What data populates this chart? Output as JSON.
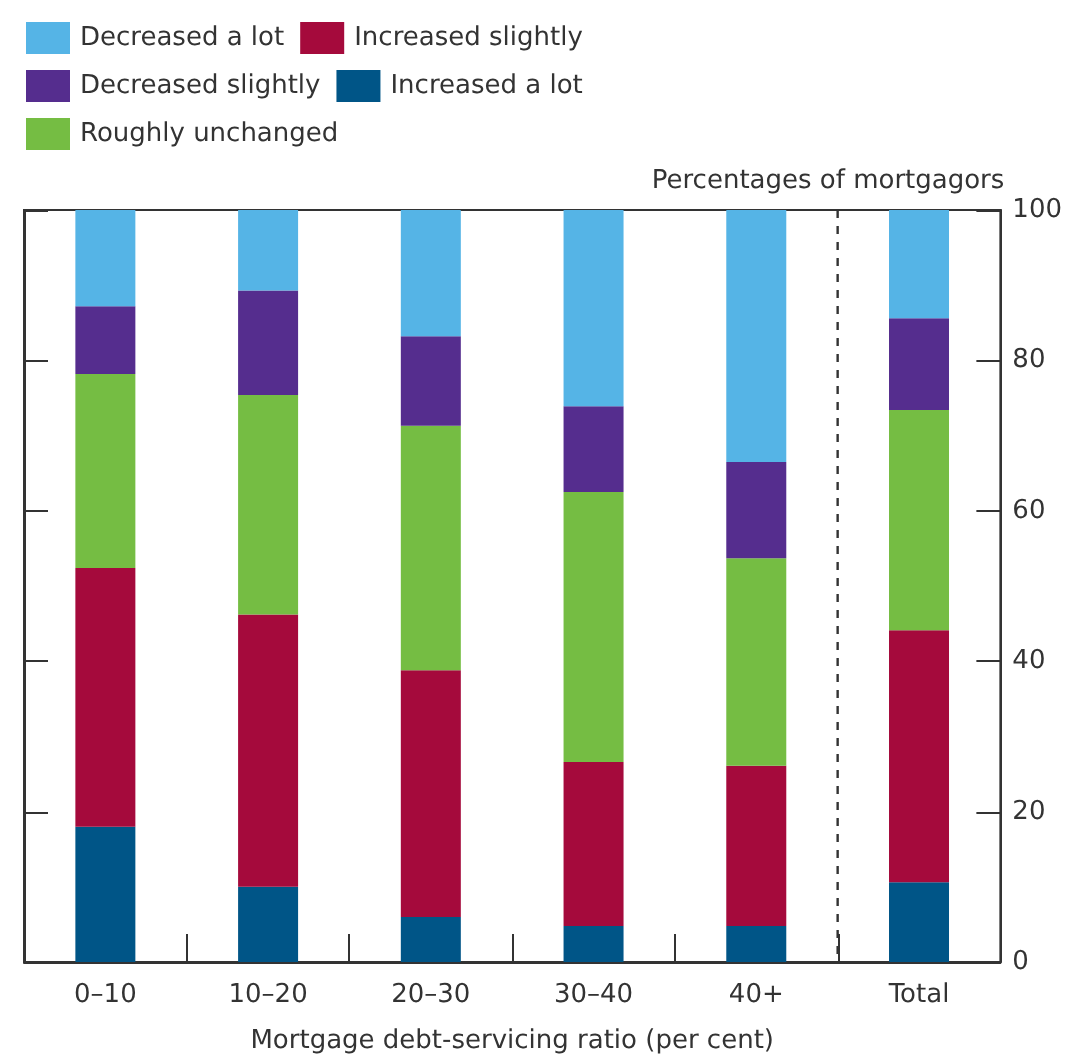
{
  "chart_data": {
    "type": "bar",
    "stacked": true,
    "xlabel": "Mortgage debt-servicing ratio (per cent)",
    "ylabel": "Percentages of mortgagors",
    "categories": [
      "0–10",
      "10–20",
      "20–30",
      "30–40",
      "40+",
      "Total"
    ],
    "series": [
      {
        "name": "Increased a lot",
        "color": "#005587",
        "values": [
          18,
          10,
          6,
          4.8,
          4.8,
          10.6
        ]
      },
      {
        "name": "Increased slightly",
        "color": "#a50a3c",
        "values": [
          34.4,
          36.2,
          32.8,
          21.8,
          21.3,
          33.5
        ]
      },
      {
        "name": "Roughly unchanged",
        "color": "#75bd43",
        "values": [
          25.8,
          29.2,
          32.5,
          35.9,
          27.6,
          29.3
        ]
      },
      {
        "name": "Decreased slightly",
        "color": "#552d8e",
        "values": [
          9,
          13.9,
          11.9,
          11.4,
          12.8,
          12.2
        ]
      },
      {
        "name": "Decreased a lot",
        "color": "#55b4e6",
        "values": [
          12.8,
          10.7,
          16.8,
          26.1,
          33.5,
          14.4
        ]
      }
    ],
    "ylim": [
      0,
      100
    ],
    "yticks": [
      0,
      20,
      40,
      60,
      80,
      100
    ],
    "legend": "top left"
  }
}
